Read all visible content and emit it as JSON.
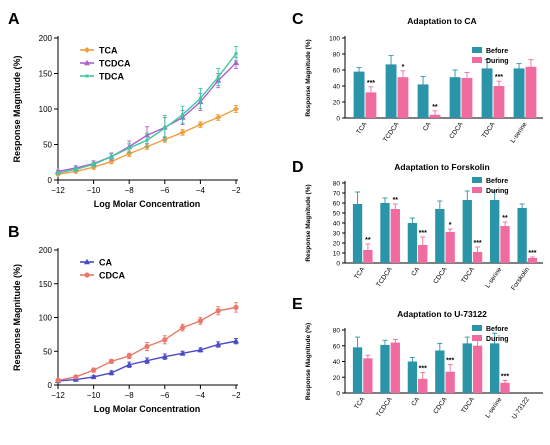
{
  "colors": {
    "TCA": "#f0a040",
    "TCDCA": "#b05fd0",
    "TDCA": "#3ec9a0",
    "CA": "#4a4ac8",
    "CDCA": "#e8786a",
    "before": "#2a94a8",
    "during": "#f06ca0"
  },
  "chart_data": [
    {
      "panel": "A",
      "type": "line",
      "title": "",
      "xlabel": "Log Molar Concentration",
      "ylabel": "Response Magnitude (%)",
      "xlim": [
        -12,
        -2
      ],
      "ylim": [
        0,
        200
      ],
      "xticks": [
        "−12",
        "−10",
        "−8",
        "−6",
        "−4",
        "−2"
      ],
      "yticks": [
        "0",
        "50",
        "100",
        "150",
        "200"
      ],
      "x": [
        -12,
        -11,
        -10,
        -9,
        -8,
        -7,
        -6,
        -5,
        -4,
        -3,
        -2
      ],
      "legend": "top-left",
      "series": [
        {
          "name": "TCA",
          "color_key": "TCA",
          "marker": "diamond",
          "values": [
            8,
            12,
            18,
            26,
            37,
            47,
            57,
            67,
            78,
            88,
            100
          ],
          "err": [
            2,
            2,
            3,
            3,
            4,
            4,
            4,
            4,
            4,
            4,
            5
          ]
        },
        {
          "name": "TCDCA",
          "color_key": "TCDCA",
          "marker": "triangle",
          "values": [
            12,
            17,
            23,
            33,
            47,
            63,
            74,
            88,
            110,
            140,
            165
          ],
          "err": [
            2,
            3,
            4,
            5,
            8,
            12,
            14,
            10,
            12,
            10,
            8
          ]
        },
        {
          "name": "TDCA",
          "color_key": "TDCA",
          "marker": "none",
          "values": [
            10,
            15,
            22,
            33,
            45,
            56,
            73,
            92,
            115,
            145,
            178
          ],
          "err": [
            2,
            3,
            3,
            4,
            6,
            10,
            18,
            12,
            14,
            12,
            10
          ]
        }
      ]
    },
    {
      "panel": "B",
      "type": "line",
      "title": "",
      "xlabel": "Log Molar Concentration",
      "ylabel": "Response Magnitude (%)",
      "xlim": [
        -12,
        -2
      ],
      "ylim": [
        0,
        200
      ],
      "xticks": [
        "−12",
        "−10",
        "−8",
        "−6",
        "−4",
        "−2"
      ],
      "yticks": [
        "0",
        "50",
        "100",
        "150",
        "200"
      ],
      "x": [
        -12,
        -11,
        -10,
        -9,
        -8,
        -7,
        -6,
        -5,
        -4,
        -3,
        -2
      ],
      "legend": "top-left",
      "series": [
        {
          "name": "CA",
          "color_key": "CA",
          "marker": "triangle",
          "values": [
            6,
            8,
            12,
            18,
            30,
            36,
            42,
            47,
            52,
            60,
            65
          ],
          "err": [
            1,
            2,
            2,
            3,
            4,
            4,
            4,
            3,
            3,
            4,
            4
          ]
        },
        {
          "name": "CDCA",
          "color_key": "CDCA",
          "marker": "circle",
          "values": [
            7,
            12,
            22,
            35,
            43,
            57,
            67,
            85,
            95,
            110,
            115
          ],
          "err": [
            1,
            2,
            3,
            3,
            4,
            6,
            6,
            5,
            5,
            6,
            7
          ]
        }
      ]
    },
    {
      "panel": "C",
      "type": "bar",
      "title": "Adaptation to CA",
      "ylabel": "Response Magnitude (%)",
      "ylim": [
        0,
        100
      ],
      "yticks": [
        "0",
        "20",
        "40",
        "60",
        "80",
        "100"
      ],
      "categories": [
        "TCA",
        "TCDCA",
        "CA",
        "CDCA",
        "TDCA",
        "L-serine"
      ],
      "legend": "top-right",
      "series": [
        {
          "name": "Before",
          "color_key": "before",
          "values": [
            58,
            67,
            42,
            51,
            62,
            62
          ],
          "err": [
            5,
            11,
            10,
            9,
            11,
            6
          ]
        },
        {
          "name": "During",
          "color_key": "during",
          "values": [
            32,
            51,
            4,
            50,
            40,
            64
          ],
          "err": [
            7,
            8,
            5,
            7,
            6,
            9
          ]
        }
      ],
      "significance": [
        "***",
        "*",
        "**",
        "",
        "***",
        ""
      ]
    },
    {
      "panel": "D",
      "type": "bar",
      "title": "Adaptation to Forskolin",
      "ylabel": "Response Magnitude (%)",
      "ylim": [
        0,
        80
      ],
      "yticks": [
        "0",
        "10",
        "20",
        "30",
        "40",
        "50",
        "60",
        "70",
        "80"
      ],
      "categories": [
        "TCA",
        "TCDCA",
        "CA",
        "CDCA",
        "TDCA",
        "L-serine",
        "Forskolin"
      ],
      "legend": "top-right",
      "series": [
        {
          "name": "Before",
          "color_key": "before",
          "values": [
            59,
            60,
            40,
            54,
            63,
            63,
            55
          ],
          "err": [
            12,
            5,
            5,
            8,
            9,
            9,
            4
          ]
        },
        {
          "name": "During",
          "color_key": "during",
          "values": [
            13,
            54,
            18,
            31,
            11,
            37,
            5
          ],
          "err": [
            6,
            5,
            8,
            3,
            5,
            4,
            1
          ]
        }
      ],
      "significance": [
        "**",
        "**",
        "***",
        "*",
        "***",
        "**",
        "***"
      ]
    },
    {
      "panel": "E",
      "type": "bar",
      "title": "Adaptation to U-73122",
      "ylabel": "Response Magnitude (%)",
      "ylim": [
        0,
        80
      ],
      "yticks": [
        "0",
        "20",
        "40",
        "60",
        "80"
      ],
      "categories": [
        "TCA",
        "TCDCA",
        "CA",
        "CDCA",
        "TDCA",
        "L-serine",
        "U-73122"
      ],
      "legend": "top-right",
      "series": [
        {
          "name": "Before",
          "color_key": "before",
          "values": [
            58,
            61,
            40,
            54,
            63,
            63,
            0
          ],
          "err": [
            13,
            6,
            5,
            9,
            8,
            13,
            0
          ]
        },
        {
          "name": "During",
          "color_key": "during",
          "values": [
            44,
            64,
            18,
            27,
            60,
            13,
            0
          ],
          "err": [
            4,
            4,
            8,
            9,
            8,
            3,
            0
          ]
        }
      ],
      "significance": [
        "",
        "",
        "***",
        "***",
        "",
        "***",
        ""
      ]
    }
  ]
}
